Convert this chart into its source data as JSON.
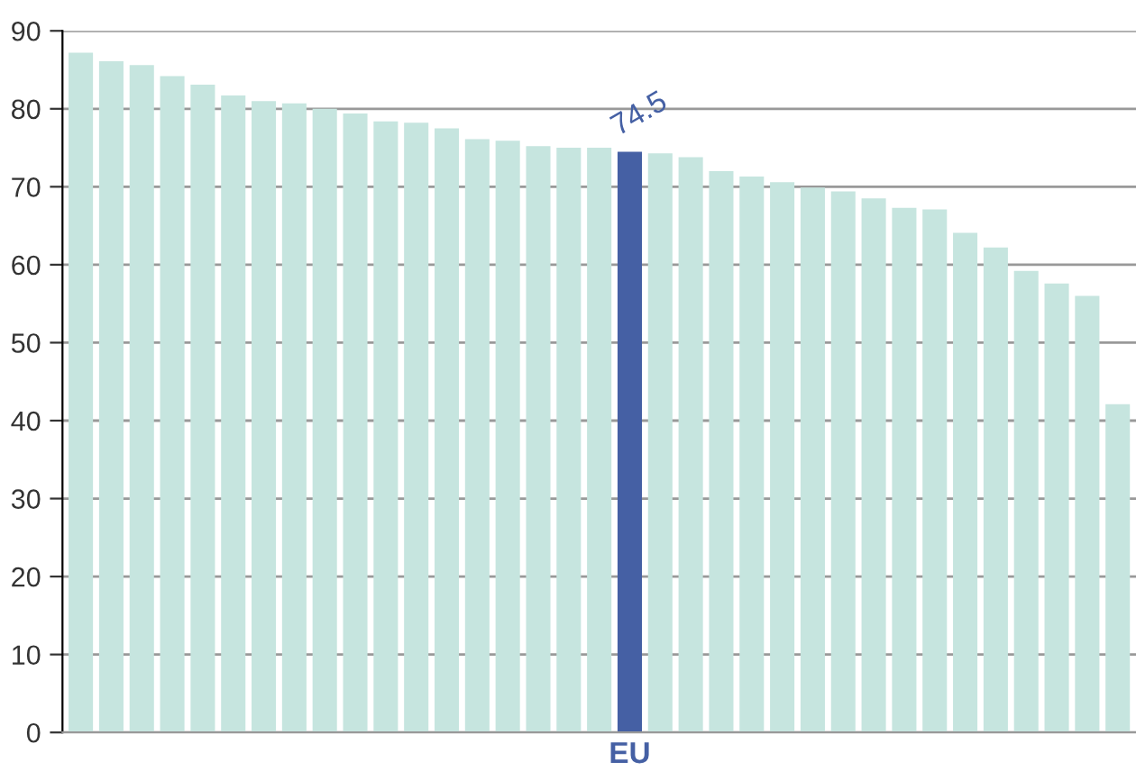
{
  "chart_data": {
    "type": "bar",
    "categories": [
      null,
      null,
      null,
      null,
      null,
      null,
      null,
      null,
      null,
      null,
      null,
      null,
      null,
      null,
      null,
      null,
      null,
      null,
      "EU",
      null,
      null,
      null,
      null,
      null,
      null,
      null,
      null,
      null,
      null,
      null,
      null,
      null,
      null,
      null,
      null
    ],
    "values": [
      87.2,
      86.1,
      85.6,
      84.2,
      83.1,
      81.7,
      81.0,
      80.7,
      80.0,
      79.4,
      78.4,
      78.2,
      77.5,
      76.1,
      75.9,
      75.2,
      75.0,
      75.0,
      74.5,
      74.3,
      73.8,
      72.0,
      71.3,
      70.6,
      69.9,
      69.4,
      68.5,
      67.3,
      67.1,
      64.1,
      62.2,
      59.2,
      57.6,
      56.0,
      42.1
    ],
    "colors": [
      "#c6e5df",
      "#c6e5df",
      "#c6e5df",
      "#c6e5df",
      "#c6e5df",
      "#c6e5df",
      "#c6e5df",
      "#c6e5df",
      "#c6e5df",
      "#c6e5df",
      "#c6e5df",
      "#c6e5df",
      "#c6e5df",
      "#c6e5df",
      "#c6e5df",
      "#c6e5df",
      "#c6e5df",
      "#c6e5df",
      "#4560a4",
      "#c6e5df",
      "#c6e5df",
      "#c6e5df",
      "#c6e5df",
      "#c6e5df",
      "#c6e5df",
      "#c6e5df",
      "#c6e5df",
      "#c6e5df",
      "#c6e5df",
      "#c6e5df",
      "#c6e5df",
      "#c6e5df",
      "#c6e5df",
      "#c6e5df",
      "#c6e5df"
    ],
    "value_labels": [
      null,
      null,
      null,
      null,
      null,
      null,
      null,
      null,
      null,
      null,
      null,
      null,
      null,
      null,
      null,
      null,
      null,
      null,
      "74.5",
      null,
      null,
      null,
      null,
      null,
      null,
      null,
      null,
      null,
      null,
      null,
      null,
      null,
      null,
      null,
      null
    ],
    "ylim": [
      0,
      90
    ],
    "yticks": [
      0,
      10,
      20,
      30,
      40,
      50,
      60,
      70,
      80,
      90
    ],
    "grid": "y"
  }
}
